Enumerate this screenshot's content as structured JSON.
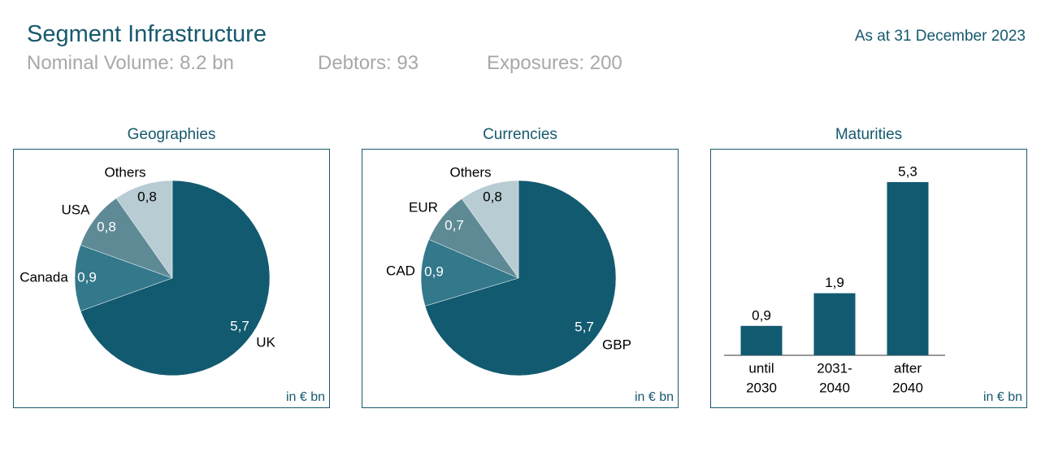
{
  "header": {
    "title": "Segment Infrastructure",
    "date": "As at 31 December 2023",
    "stats": {
      "nominal": "Nominal Volume: 8.2 bn",
      "debtors": "Debtors: 93",
      "exposures": "Exposures: 200"
    }
  },
  "unit_label": "in € bn",
  "colors": {
    "text_accent": "#17596e",
    "stats_gray": "#a8a8a8",
    "series": [
      "#125a70",
      "#33788b",
      "#5e8a96",
      "#b8ccd3"
    ]
  },
  "chart_data": [
    {
      "type": "pie",
      "title": "Geographies",
      "slices": [
        {
          "label": "UK",
          "value": 5.7,
          "display": "5,7"
        },
        {
          "label": "Canada",
          "value": 0.9,
          "display": "0,9"
        },
        {
          "label": "USA",
          "value": 0.8,
          "display": "0,8"
        },
        {
          "label": "Others",
          "value": 0.8,
          "display": "0,8"
        }
      ],
      "start": "12 o'clock",
      "direction": "clockwise"
    },
    {
      "type": "pie",
      "title": "Currencies",
      "slices": [
        {
          "label": "GBP",
          "value": 5.7,
          "display": "5,7"
        },
        {
          "label": "CAD",
          "value": 0.9,
          "display": "0,9"
        },
        {
          "label": "EUR",
          "value": 0.7,
          "display": "0,7"
        },
        {
          "label": "Others",
          "value": 0.8,
          "display": "0,8"
        }
      ],
      "start": "12 o'clock",
      "direction": "clockwise"
    },
    {
      "type": "bar",
      "title": "Maturities",
      "categories": [
        [
          "until",
          "2030"
        ],
        [
          "2031-",
          "2040"
        ],
        [
          "after",
          "2040"
        ]
      ],
      "values": [
        0.9,
        1.9,
        5.3
      ],
      "display": [
        "0,9",
        "1,9",
        "5,3"
      ],
      "ylim": [
        0,
        5.3
      ]
    }
  ]
}
